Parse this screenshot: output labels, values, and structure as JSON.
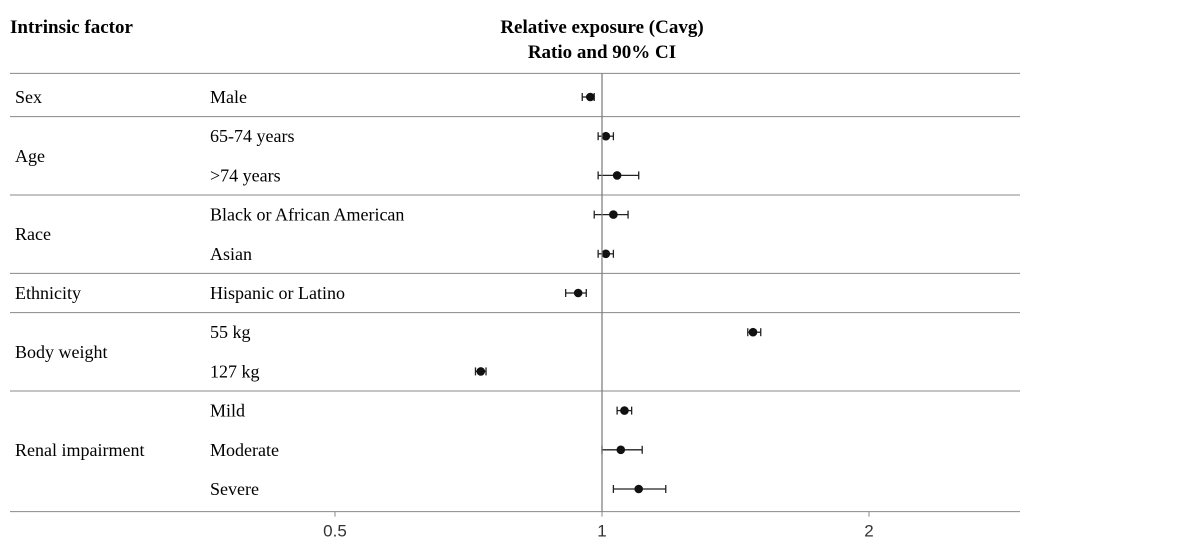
{
  "header": {
    "factor_col": "Intrinsic factor",
    "title_line1": "Relative exposure (Cavg)",
    "title_line2": "Ratio and 90% CI"
  },
  "chart_data": {
    "type": "forest",
    "title": "Relative exposure (Cavg) Ratio and 90% CI",
    "x_scale": "log",
    "reference_line": 1,
    "xlim": [
      0.375,
      2.7
    ],
    "x_ticks": [
      0.5,
      1,
      2
    ],
    "x_tick_labels": [
      "0.5",
      "1",
      "2"
    ],
    "groups": [
      {
        "name": "Sex",
        "rows": [
          {
            "label": "Male",
            "ratio": 0.97,
            "lo": 0.95,
            "hi": 0.98
          }
        ]
      },
      {
        "name": "Age",
        "rows": [
          {
            "label": "65-74 years",
            "ratio": 1.01,
            "lo": 0.99,
            "hi": 1.03
          },
          {
            "label": ">74 years",
            "ratio": 1.04,
            "lo": 0.99,
            "hi": 1.1
          }
        ]
      },
      {
        "name": "Race",
        "rows": [
          {
            "label": "Black or African American",
            "ratio": 1.03,
            "lo": 0.98,
            "hi": 1.07
          },
          {
            "label": "Asian",
            "ratio": 1.01,
            "lo": 0.99,
            "hi": 1.03
          }
        ]
      },
      {
        "name": "Ethnicity",
        "rows": [
          {
            "label": "Hispanic or Latino",
            "ratio": 0.94,
            "lo": 0.91,
            "hi": 0.96
          }
        ]
      },
      {
        "name": "Body weight",
        "rows": [
          {
            "label": "55 kg",
            "ratio": 1.48,
            "lo": 1.46,
            "hi": 1.51
          },
          {
            "label": "127 kg",
            "ratio": 0.73,
            "lo": 0.72,
            "hi": 0.74
          }
        ]
      },
      {
        "name": "Renal impairment",
        "rows": [
          {
            "label": "Mild",
            "ratio": 1.06,
            "lo": 1.04,
            "hi": 1.08
          },
          {
            "label": "Moderate",
            "ratio": 1.05,
            "lo": 1.0,
            "hi": 1.11
          },
          {
            "label": "Severe",
            "ratio": 1.1,
            "lo": 1.03,
            "hi": 1.18
          }
        ]
      }
    ]
  }
}
